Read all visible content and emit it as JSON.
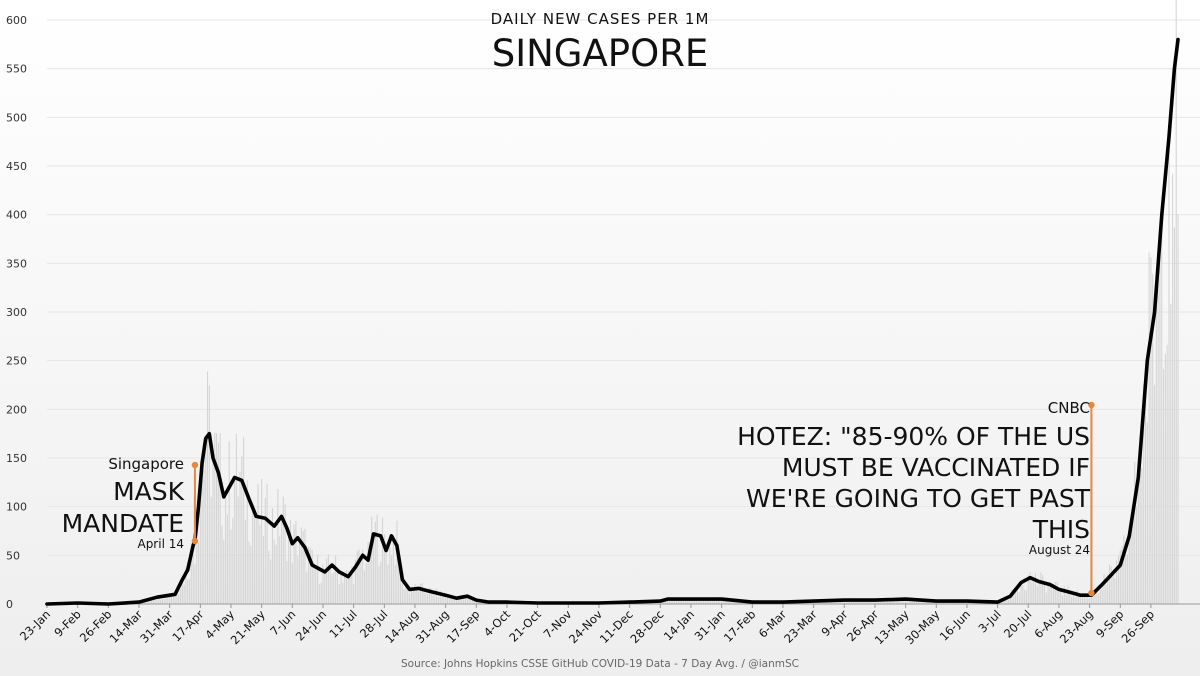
{
  "title": "DAILY NEW CASES PER 1M",
  "subtitle": "SINGAPORE",
  "source": "Source: Johns Hopkins CSSE GitHub  COVID-19 Data - 7 Day Avg. / @ianmSC",
  "annotations": {
    "left": {
      "top_label": "Singapore",
      "headline_line1": "MASK",
      "headline_line2": "MANDATE",
      "date_label": "April 14"
    },
    "right": {
      "top_label": "CNBC",
      "headline_line1": "HOTEZ: \"85-90% OF THE US",
      "headline_line2": "MUST BE VACCINATED IF",
      "headline_line3": "WE'RE GOING TO GET PAST",
      "headline_line4": "THIS",
      "date_label": "August 24"
    }
  },
  "colors": {
    "line": "#000000",
    "daily_bars": "#d4d4d4",
    "annotation": "#e8873a",
    "grid": "#e6e6e6",
    "background_bottom": "#eeeeee"
  },
  "chart_data": {
    "type": "line",
    "title": "DAILY NEW CASES PER 1M",
    "subtitle": "SINGAPORE",
    "xlabel": "",
    "ylabel": "",
    "ylim": [
      0,
      600
    ],
    "yticks": [
      0,
      50,
      100,
      150,
      200,
      250,
      300,
      350,
      400,
      450,
      500,
      550,
      600
    ],
    "xticks": [
      "23-Jan",
      "9-Feb",
      "26-Feb",
      "14-Mar",
      "31-Mar",
      "17-Apr",
      "4-May",
      "21-May",
      "7-Jun",
      "24-Jun",
      "11-Jul",
      "28-Jul",
      "14-Aug",
      "31-Aug",
      "17-Sep",
      "4-Oct",
      "21-Oct",
      "7-Nov",
      "24-Nov",
      "11-Dec",
      "28-Dec",
      "14-Jan",
      "31-Jan",
      "17-Feb",
      "6-Mar",
      "23-Mar",
      "9-Apr",
      "26-Apr",
      "13-May",
      "30-May",
      "16-Jun",
      "3-Jul",
      "20-Jul",
      "6-Aug",
      "23-Aug",
      "9-Sep",
      "26-Sep"
    ],
    "grid": true,
    "legend": "none",
    "series": [
      {
        "role": "7-day average line",
        "points": [
          [
            "2020-01-23",
            0
          ],
          [
            "2020-02-09",
            1
          ],
          [
            "2020-02-26",
            0
          ],
          [
            "2020-03-14",
            2
          ],
          [
            "2020-03-24",
            7
          ],
          [
            "2020-03-31",
            9
          ],
          [
            "2020-04-03",
            10
          ],
          [
            "2020-04-07",
            25
          ],
          [
            "2020-04-10",
            35
          ],
          [
            "2020-04-13",
            60
          ],
          [
            "2020-04-14",
            65
          ],
          [
            "2020-04-16",
            100
          ],
          [
            "2020-04-18",
            145
          ],
          [
            "2020-04-20",
            170
          ],
          [
            "2020-04-22",
            175
          ],
          [
            "2020-04-24",
            150
          ],
          [
            "2020-04-27",
            135
          ],
          [
            "2020-04-30",
            110
          ],
          [
            "2020-05-03",
            120
          ],
          [
            "2020-05-06",
            130
          ],
          [
            "2020-05-10",
            127
          ],
          [
            "2020-05-14",
            108
          ],
          [
            "2020-05-18",
            90
          ],
          [
            "2020-05-23",
            88
          ],
          [
            "2020-05-28",
            80
          ],
          [
            "2020-06-01",
            90
          ],
          [
            "2020-06-04",
            78
          ],
          [
            "2020-06-07",
            62
          ],
          [
            "2020-06-10",
            68
          ],
          [
            "2020-06-14",
            58
          ],
          [
            "2020-06-18",
            40
          ],
          [
            "2020-06-22",
            36
          ],
          [
            "2020-06-25",
            33
          ],
          [
            "2020-06-29",
            40
          ],
          [
            "2020-07-03",
            33
          ],
          [
            "2020-07-08",
            28
          ],
          [
            "2020-07-12",
            38
          ],
          [
            "2020-07-16",
            50
          ],
          [
            "2020-07-19",
            45
          ],
          [
            "2020-07-22",
            72
          ],
          [
            "2020-07-26",
            70
          ],
          [
            "2020-07-29",
            55
          ],
          [
            "2020-08-01",
            70
          ],
          [
            "2020-08-04",
            60
          ],
          [
            "2020-08-07",
            25
          ],
          [
            "2020-08-11",
            15
          ],
          [
            "2020-08-16",
            16
          ],
          [
            "2020-08-22",
            13
          ],
          [
            "2020-08-31",
            9
          ],
          [
            "2020-09-06",
            6
          ],
          [
            "2020-09-12",
            8
          ],
          [
            "2020-09-17",
            4
          ],
          [
            "2020-09-24",
            2
          ],
          [
            "2020-10-04",
            2
          ],
          [
            "2020-10-21",
            1
          ],
          [
            "2020-11-07",
            1
          ],
          [
            "2020-11-24",
            1
          ],
          [
            "2020-12-11",
            2
          ],
          [
            "2020-12-28",
            3
          ],
          [
            "2021-01-01",
            5
          ],
          [
            "2021-01-14",
            5
          ],
          [
            "2021-01-31",
            5
          ],
          [
            "2021-02-17",
            2
          ],
          [
            "2021-03-06",
            2
          ],
          [
            "2021-03-23",
            3
          ],
          [
            "2021-04-09",
            4
          ],
          [
            "2021-04-26",
            4
          ],
          [
            "2021-05-13",
            5
          ],
          [
            "2021-05-30",
            3
          ],
          [
            "2021-06-10",
            3
          ],
          [
            "2021-06-16",
            3
          ],
          [
            "2021-07-03",
            2
          ],
          [
            "2021-07-10",
            8
          ],
          [
            "2021-07-16",
            22
          ],
          [
            "2021-07-21",
            27
          ],
          [
            "2021-07-26",
            23
          ],
          [
            "2021-08-01",
            20
          ],
          [
            "2021-08-06",
            15
          ],
          [
            "2021-08-12",
            12
          ],
          [
            "2021-08-18",
            9
          ],
          [
            "2021-08-24",
            9
          ],
          [
            "2021-08-30",
            20
          ],
          [
            "2021-09-04",
            30
          ],
          [
            "2021-09-09",
            40
          ],
          [
            "2021-09-14",
            70
          ],
          [
            "2021-09-19",
            130
          ],
          [
            "2021-09-24",
            250
          ],
          [
            "2021-09-28",
            300
          ],
          [
            "2021-10-02",
            400
          ],
          [
            "2021-10-06",
            480
          ],
          [
            "2021-10-09",
            550
          ],
          [
            "2021-10-11",
            580
          ]
        ]
      }
    ]
  }
}
